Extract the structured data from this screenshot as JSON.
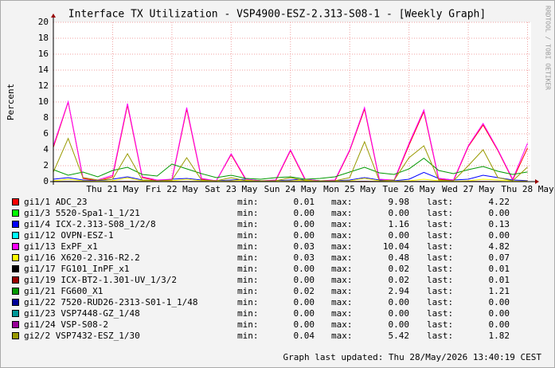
{
  "chart_data": {
    "type": "line",
    "title": "Interface TX Utilization - VSP4900-ESZ-2.313-S08-1 - [Weekly Graph]",
    "y_label": "Percent",
    "watermark": "RRDTOOL / TOBI OETIKER",
    "footer": "Graph last updated: Thu 28/May/2026 13:40:19 CEST",
    "stat_labels": [
      "min:",
      "max:",
      "last:"
    ],
    "x": [
      0,
      0.25,
      0.5,
      0.75,
      1,
      1.25,
      1.5,
      1.75,
      2,
      2.25,
      2.5,
      2.75,
      3,
      3.25,
      3.5,
      3.75,
      4,
      4.25,
      4.5,
      4.75,
      5,
      5.25,
      5.5,
      5.75,
      6,
      6.25,
      6.5,
      6.75,
      7,
      7.25,
      7.5,
      7.75,
      8
    ],
    "xlim": [
      0,
      8.06
    ],
    "xticks": [
      {
        "value": 1,
        "label": "Thu 21 May"
      },
      {
        "value": 2,
        "label": "Fri 22 May"
      },
      {
        "value": 3,
        "label": "Sat 23 May"
      },
      {
        "value": 4,
        "label": "Sun 24 May"
      },
      {
        "value": 5,
        "label": "Mon 25 May"
      },
      {
        "value": 6,
        "label": "Tue 26 May"
      },
      {
        "value": 7,
        "label": "Wed 27 May"
      },
      {
        "value": 8,
        "label": "Thu 28 May"
      }
    ],
    "ylim": [
      0,
      20
    ],
    "yticks": [
      0,
      2,
      4,
      6,
      8,
      10,
      12,
      14,
      16,
      18,
      20
    ],
    "grid": true,
    "series": [
      {
        "name": "gi1/1 ADC_23",
        "color": "#ff0000",
        "stats": [
          "0.01",
          "9.98",
          "4.22"
        ],
        "values": [
          4.3,
          9.98,
          0.4,
          0.1,
          0.6,
          9.6,
          0.5,
          0.1,
          0.2,
          9.1,
          0.3,
          0.1,
          3.4,
          0.2,
          0.1,
          0.1,
          3.9,
          0.2,
          0.1,
          0.1,
          3.9,
          9.1,
          0.2,
          0.1,
          4.6,
          8.8,
          0.3,
          0.1,
          4.4,
          7.1,
          3.9,
          0.2,
          4.22
        ]
      },
      {
        "name": "gi1/3 5520-Spa1-1_1/21",
        "color": "#00ff00",
        "stats": [
          "0.00",
          "0.00",
          "0.00"
        ],
        "values": [
          0,
          0,
          0,
          0,
          0,
          0,
          0,
          0,
          0,
          0,
          0,
          0,
          0,
          0,
          0,
          0,
          0,
          0,
          0,
          0,
          0,
          0,
          0,
          0,
          0,
          0,
          0,
          0,
          0,
          0,
          0,
          0,
          0
        ]
      },
      {
        "name": "gi1/4 ICX-2.313-S08_1/2/8",
        "color": "#0000ff",
        "stats": [
          "0.00",
          "1.16",
          "0.13"
        ],
        "values": [
          0.3,
          0.5,
          0.2,
          0.1,
          0.3,
          0.6,
          0.2,
          0.1,
          0.3,
          0.4,
          0.2,
          0.1,
          0.2,
          0.3,
          0.1,
          0.1,
          0.2,
          0.3,
          0.1,
          0.1,
          0.2,
          0.5,
          0.2,
          0.1,
          0.3,
          1.16,
          0.4,
          0.2,
          0.3,
          0.8,
          0.5,
          0.2,
          0.13
        ]
      },
      {
        "name": "gi1/12 OVPN-ESZ-1",
        "color": "#00ffff",
        "stats": [
          "0.00",
          "0.00",
          "0.00"
        ],
        "values": [
          0,
          0,
          0,
          0,
          0,
          0,
          0,
          0,
          0,
          0,
          0,
          0,
          0,
          0,
          0,
          0,
          0,
          0,
          0,
          0,
          0,
          0,
          0,
          0,
          0,
          0,
          0,
          0,
          0,
          0,
          0,
          0,
          0
        ]
      },
      {
        "name": "gi1/13 ExPF_x1",
        "color": "#ff00ff",
        "stats": [
          "0.03",
          "10.04",
          "4.82"
        ],
        "values": [
          4.5,
          10.04,
          0.5,
          0.2,
          0.8,
          9.8,
          0.6,
          0.2,
          0.3,
          9.3,
          0.4,
          0.1,
          3.5,
          0.3,
          0.1,
          0.2,
          4,
          0.3,
          0.1,
          0.2,
          4,
          9.3,
          0.3,
          0.2,
          4.8,
          9,
          0.4,
          0.2,
          4.5,
          7.3,
          4,
          0.3,
          4.82
        ]
      },
      {
        "name": "gi1/16 X620-2.316-R2.2",
        "color": "#ffff00",
        "stats": [
          "0.03",
          "0.48",
          "0.07"
        ],
        "values": [
          0.1,
          0.3,
          0.1,
          0.05,
          0.1,
          0.48,
          0.1,
          0.05,
          0.1,
          0.3,
          0.1,
          0.05,
          0.1,
          0.2,
          0.05,
          0.05,
          0.1,
          0.2,
          0.05,
          0.05,
          0.1,
          0.4,
          0.1,
          0.05,
          0.1,
          0.3,
          0.1,
          0.05,
          0.1,
          0.3,
          0.2,
          0.05,
          0.07
        ]
      },
      {
        "name": "gi1/17 FG101_InPF_x1",
        "color": "#000000",
        "stats": [
          "0.00",
          "0.02",
          "0.01"
        ],
        "values": [
          0.01,
          0.02,
          0.01,
          0,
          0.01,
          0.02,
          0.01,
          0,
          0.01,
          0.01,
          0.01,
          0,
          0.01,
          0.01,
          0,
          0,
          0.01,
          0.01,
          0,
          0,
          0.01,
          0.02,
          0.01,
          0,
          0.01,
          0.02,
          0.01,
          0,
          0.01,
          0.01,
          0.01,
          0,
          0.01
        ]
      },
      {
        "name": "gi1/19 ICX-BT2-1.301-UV_1/3/2",
        "color": "#990000",
        "stats": [
          "0.00",
          "0.02",
          "0.01"
        ],
        "values": [
          0.01,
          0.01,
          0.01,
          0,
          0.01,
          0.02,
          0.01,
          0,
          0.01,
          0.01,
          0.01,
          0,
          0.01,
          0.01,
          0,
          0,
          0.01,
          0.01,
          0,
          0,
          0.01,
          0.02,
          0.01,
          0,
          0.01,
          0.01,
          0.01,
          0,
          0.01,
          0.02,
          0.01,
          0,
          0.01
        ]
      },
      {
        "name": "gi1/21 FG600_X1",
        "color": "#009900",
        "stats": [
          "0.02",
          "2.94",
          "1.21"
        ],
        "values": [
          1.5,
          0.8,
          1.2,
          0.6,
          1.4,
          1.8,
          0.9,
          0.7,
          2.2,
          1.6,
          1.0,
          0.5,
          0.8,
          0.4,
          0.3,
          0.5,
          0.6,
          0.3,
          0.4,
          0.6,
          1.2,
          1.8,
          1.1,
          0.9,
          1.6,
          2.94,
          1.4,
          1.0,
          1.5,
          1.9,
          1.3,
          0.9,
          1.21
        ]
      },
      {
        "name": "gi1/22 7520-RUD26-2313-S01-1_1/48",
        "color": "#000099",
        "stats": [
          "0.00",
          "0.00",
          "0.00"
        ],
        "values": [
          0,
          0,
          0,
          0,
          0,
          0,
          0,
          0,
          0,
          0,
          0,
          0,
          0,
          0,
          0,
          0,
          0,
          0,
          0,
          0,
          0,
          0,
          0,
          0,
          0,
          0,
          0,
          0,
          0,
          0,
          0,
          0,
          0
        ]
      },
      {
        "name": "gi1/23 VSP7448-GZ_1/48",
        "color": "#009999",
        "stats": [
          "0.00",
          "0.00",
          "0.00"
        ],
        "values": [
          0,
          0,
          0,
          0,
          0,
          0,
          0,
          0,
          0,
          0,
          0,
          0,
          0,
          0,
          0,
          0,
          0,
          0,
          0,
          0,
          0,
          0,
          0,
          0,
          0,
          0,
          0,
          0,
          0,
          0,
          0,
          0,
          0
        ]
      },
      {
        "name": "gi1/24 VSP-S08-2",
        "color": "#990099",
        "stats": [
          "0.00",
          "0.00",
          "0.00"
        ],
        "values": [
          0,
          0,
          0,
          0,
          0,
          0,
          0,
          0,
          0,
          0,
          0,
          0,
          0,
          0,
          0,
          0,
          0,
          0,
          0,
          0,
          0,
          0,
          0,
          0,
          0,
          0,
          0,
          0,
          0,
          0,
          0,
          0,
          0
        ]
      },
      {
        "name": "gi2/2 VSP7432-ESZ_1/30",
        "color": "#999900",
        "stats": [
          "0.04",
          "5.42",
          "1.82"
        ],
        "values": [
          1.2,
          5.42,
          0.5,
          0.2,
          0.3,
          3.5,
          0.2,
          0.1,
          0.2,
          3,
          0.2,
          0.1,
          0.5,
          0.1,
          0.1,
          0.1,
          0.5,
          0.1,
          0.1,
          0.1,
          0.5,
          5,
          0.1,
          0.2,
          3,
          4.5,
          0.2,
          0.1,
          2,
          4,
          0.5,
          0.1,
          1.82
        ]
      }
    ]
  }
}
